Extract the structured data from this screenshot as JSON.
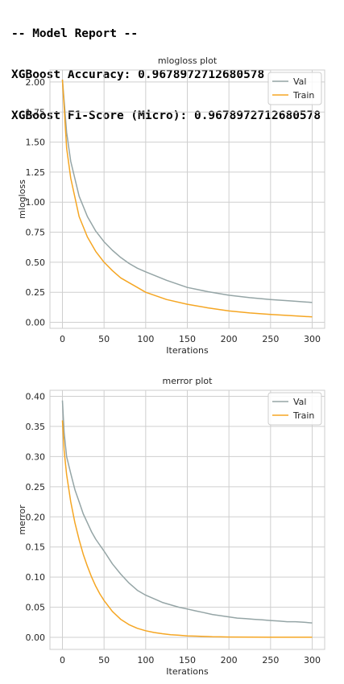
{
  "report": {
    "line1": "-- Model Report --",
    "line2": "XGBoost Accuracy: 0.9678972712680578",
    "line3": "XGBoost F1-Score (Micro): 0.9678972712680578"
  },
  "colors": {
    "val": "#95a5a6",
    "train": "#f5a623",
    "grid": "#cfcfcf",
    "frame": "#cccccc",
    "text": "#262626"
  },
  "chart_data": [
    {
      "type": "line",
      "title": "mlogloss plot",
      "xlabel": "Iterations",
      "ylabel": "mlogloss",
      "xlim": [
        -15,
        315
      ],
      "ylim": [
        -0.05,
        2.1
      ],
      "xticks": [
        0,
        50,
        100,
        150,
        200,
        250,
        300
      ],
      "yticks": [
        0.0,
        0.25,
        0.5,
        0.75,
        1.0,
        1.25,
        1.5,
        1.75,
        2.0
      ],
      "ytick_labels": [
        "0.00",
        "0.25",
        "0.50",
        "0.75",
        "1.00",
        "1.25",
        "1.50",
        "1.75",
        "2.00"
      ],
      "grid": true,
      "legend": "upper-right",
      "series": [
        {
          "name": "Val",
          "color": "#95a5a6",
          "x": [
            0,
            5,
            10,
            20,
            30,
            40,
            50,
            60,
            70,
            80,
            90,
            100,
            125,
            150,
            175,
            200,
            225,
            250,
            275,
            300
          ],
          "y": [
            2.02,
            1.58,
            1.34,
            1.05,
            0.88,
            0.76,
            0.67,
            0.6,
            0.54,
            0.49,
            0.45,
            0.42,
            0.35,
            0.29,
            0.255,
            0.225,
            0.205,
            0.19,
            0.178,
            0.165
          ]
        },
        {
          "name": "Train",
          "color": "#f5a623",
          "x": [
            0,
            5,
            10,
            20,
            30,
            40,
            50,
            60,
            70,
            80,
            90,
            100,
            125,
            150,
            175,
            200,
            225,
            250,
            275,
            300
          ],
          "y": [
            2.02,
            1.45,
            1.2,
            0.88,
            0.71,
            0.59,
            0.5,
            0.43,
            0.37,
            0.33,
            0.29,
            0.25,
            0.19,
            0.15,
            0.12,
            0.095,
            0.078,
            0.065,
            0.055,
            0.045
          ]
        }
      ]
    },
    {
      "type": "line",
      "title": "merror plot",
      "xlabel": "Iterations",
      "ylabel": "merror",
      "xlim": [
        -15,
        315
      ],
      "ylim": [
        -0.02,
        0.41
      ],
      "xticks": [
        0,
        50,
        100,
        150,
        200,
        250,
        300
      ],
      "yticks": [
        0.0,
        0.05,
        0.1,
        0.15,
        0.2,
        0.25,
        0.3,
        0.35,
        0.4
      ],
      "ytick_labels": [
        "0.00",
        "0.05",
        "0.10",
        "0.15",
        "0.20",
        "0.25",
        "0.30",
        "0.35",
        "0.40"
      ],
      "grid": true,
      "legend": "upper-right",
      "series": [
        {
          "name": "Val",
          "color": "#95a5a6",
          "x": [
            0,
            2,
            5,
            10,
            15,
            20,
            25,
            30,
            35,
            40,
            45,
            50,
            60,
            70,
            80,
            90,
            100,
            110,
            120,
            130,
            140,
            150,
            160,
            170,
            180,
            190,
            200,
            210,
            220,
            230,
            240,
            250,
            260,
            270,
            280,
            290,
            300
          ],
          "y": [
            0.393,
            0.34,
            0.3,
            0.272,
            0.245,
            0.225,
            0.205,
            0.19,
            0.175,
            0.163,
            0.153,
            0.143,
            0.122,
            0.105,
            0.09,
            0.078,
            0.07,
            0.064,
            0.058,
            0.054,
            0.05,
            0.047,
            0.044,
            0.041,
            0.038,
            0.036,
            0.034,
            0.032,
            0.031,
            0.03,
            0.029,
            0.028,
            0.027,
            0.026,
            0.026,
            0.025,
            0.024
          ]
        },
        {
          "name": "Train",
          "color": "#f5a623",
          "x": [
            0,
            2,
            5,
            10,
            15,
            20,
            25,
            30,
            35,
            40,
            45,
            50,
            60,
            70,
            80,
            90,
            100,
            110,
            120,
            130,
            140,
            150,
            160,
            170,
            180,
            190,
            200,
            225,
            250,
            275,
            300
          ],
          "y": [
            0.36,
            0.31,
            0.27,
            0.225,
            0.19,
            0.162,
            0.138,
            0.118,
            0.1,
            0.085,
            0.072,
            0.061,
            0.043,
            0.03,
            0.021,
            0.015,
            0.011,
            0.008,
            0.006,
            0.0045,
            0.0035,
            0.0025,
            0.002,
            0.0015,
            0.001,
            0.0008,
            0.0005,
            0.0003,
            0.0002,
            0.0001,
            0.0001
          ]
        }
      ]
    }
  ]
}
